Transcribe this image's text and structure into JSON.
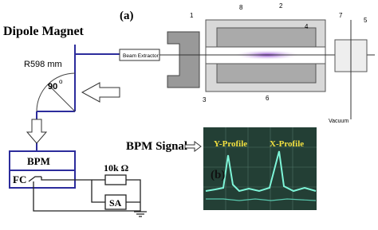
{
  "figure": {
    "panel_a": {
      "label": "(a)",
      "dipole_title": "Dipole Magnet",
      "radius": "R598 mm",
      "angle": "90",
      "angle_sup": "o",
      "extractor": "Beam Extractor",
      "parts": [
        "1",
        "2",
        "3",
        "4",
        "5",
        "6",
        "7",
        "8"
      ],
      "vacuum": "Vacuum"
    },
    "circuit": {
      "bpm": "BPM",
      "fc": "FC",
      "resistor": "10k Ω",
      "sa": "SA"
    },
    "panel_b": {
      "label": "(b)",
      "title": "BPM Signal",
      "y_profile": "Y-Profile",
      "x_profile": "X-Profile"
    }
  }
}
